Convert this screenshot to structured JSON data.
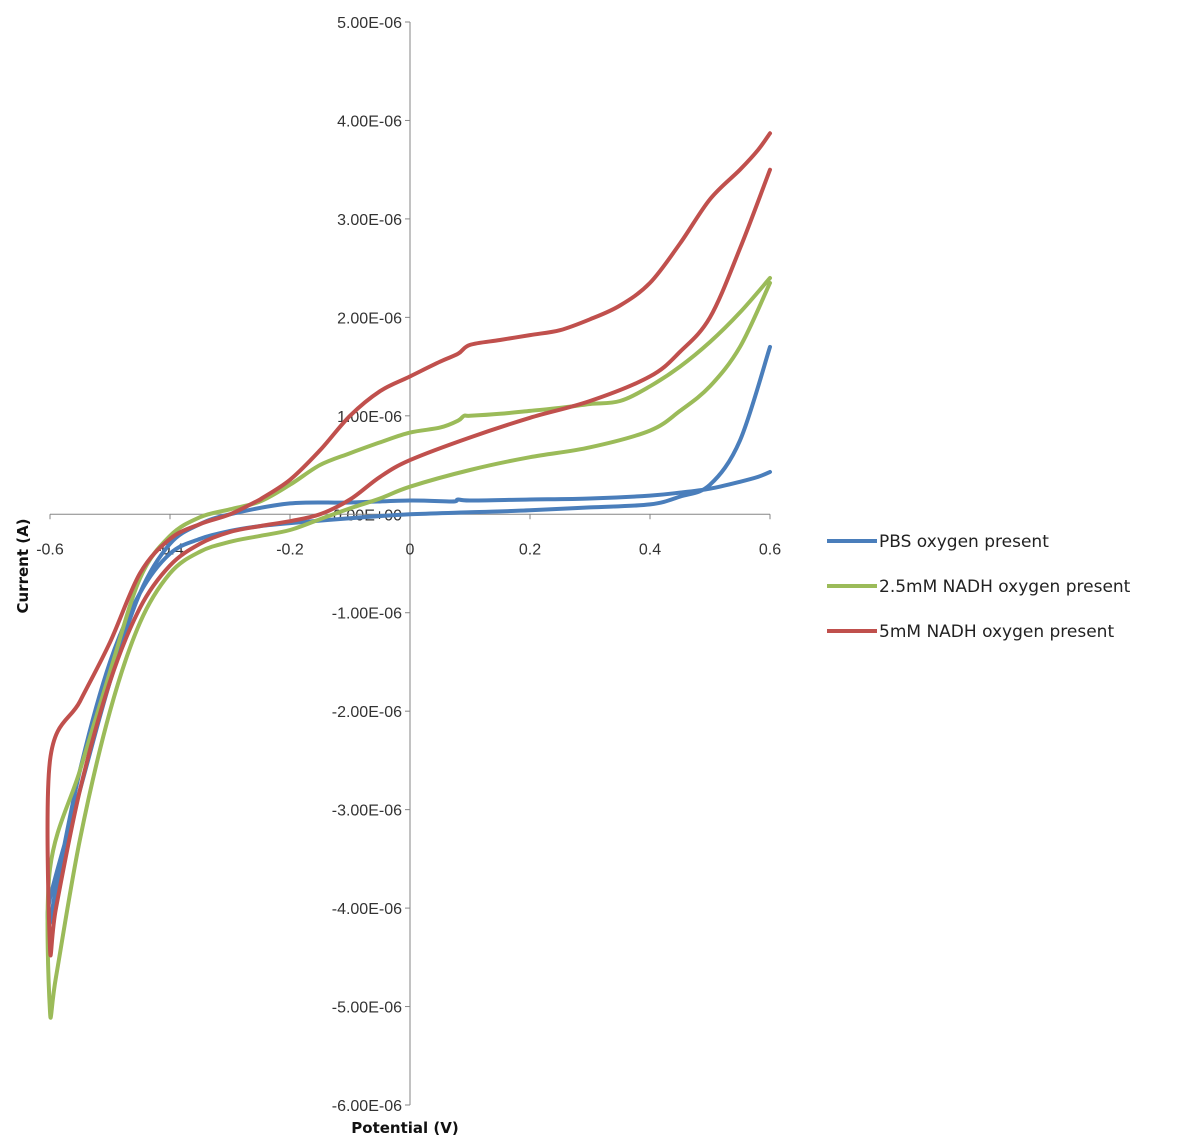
{
  "chart_data": {
    "type": "line",
    "title": "",
    "xlabel": "Potential (V)",
    "ylabel": "Current (A)",
    "xlim": [
      -0.6,
      0.6
    ],
    "ylim": [
      -6e-06,
      5e-06
    ],
    "x_ticks": [
      -0.6,
      -0.4,
      -0.2,
      0,
      0.2,
      0.4,
      0.6
    ],
    "x_tick_labels": [
      "-0.6",
      "-0.4",
      "-0.2",
      "0",
      "0.2",
      "0.4",
      "0.6"
    ],
    "y_ticks": [
      5e-06,
      4e-06,
      3e-06,
      2e-06,
      1e-06,
      0,
      -1e-06,
      -2e-06,
      -3e-06,
      -4e-06,
      -5e-06,
      -6e-06
    ],
    "y_tick_labels": [
      "5.00E-06",
      "4.00E-06",
      "3.00E-06",
      "2.00E-06",
      "1.00E-06",
      "0.00E+00",
      "-1.00E-06",
      "-2.00E-06",
      "-3.00E-06",
      "-4.00E-06",
      "-5.00E-06",
      "-6.00E-06"
    ],
    "grid": false,
    "legend_position": "right",
    "series": [
      {
        "name": "PBS oxygen present",
        "color": "#4A7EBB",
        "x": [
          0.6,
          0.58,
          0.55,
          0.5,
          0.45,
          0.4,
          0.3,
          0.2,
          0.1,
          0.08,
          0.07,
          0.0,
          -0.1,
          -0.2,
          -0.3,
          -0.35,
          -0.4,
          -0.45,
          -0.5,
          -0.55,
          -0.6,
          -0.6,
          -0.59,
          -0.55,
          -0.5,
          -0.45,
          -0.4,
          -0.35,
          -0.3,
          -0.25,
          -0.2,
          -0.1,
          0.0,
          0.1,
          0.2,
          0.3,
          0.4,
          0.45,
          0.5,
          0.55,
          0.6
        ],
        "y": [
          4.3e-07,
          3.8e-07,
          3.3e-07,
          2.6e-07,
          2.2e-07,
          1.9e-07,
          1.6e-07,
          1.5e-07,
          1.4e-07,
          1.5e-07,
          1.3e-07,
          1.4e-07,
          1.2e-07,
          1.1e-07,
          0.0,
          -1e-07,
          -3e-07,
          -8e-07,
          -1.7e-06,
          -2.8e-06,
          -3.9e-06,
          -4.15e-06,
          -3.8e-06,
          -2.6e-06,
          -1.5e-06,
          -8e-07,
          -4e-07,
          -2.5e-07,
          -1.7e-07,
          -1.2e-07,
          -9e-08,
          -4e-08,
          0.0,
          2e-08,
          4e-08,
          7e-08,
          1e-07,
          1.8e-07,
          3e-07,
          7.5e-07,
          1.7e-06
        ]
      },
      {
        "name": "2.5mM NADH oxygen present",
        "color": "#9BBB59",
        "x": [
          0.6,
          0.55,
          0.5,
          0.45,
          0.4,
          0.35,
          0.3,
          0.25,
          0.2,
          0.15,
          0.1,
          0.09,
          0.08,
          0.05,
          0.0,
          -0.05,
          -0.1,
          -0.15,
          -0.2,
          -0.25,
          -0.3,
          -0.35,
          -0.4,
          -0.45,
          -0.5,
          -0.55,
          -0.6,
          -0.6,
          -0.59,
          -0.55,
          -0.5,
          -0.45,
          -0.4,
          -0.35,
          -0.3,
          -0.25,
          -0.2,
          -0.15,
          -0.1,
          -0.05,
          0.0,
          0.1,
          0.2,
          0.3,
          0.4,
          0.45,
          0.5,
          0.55,
          0.6
        ],
        "y": [
          2.4e-06,
          2.05e-06,
          1.75e-06,
          1.5e-06,
          1.3e-06,
          1.15e-06,
          1.12e-06,
          1.08e-06,
          1.05e-06,
          1.02e-06,
          1e-06,
          1e-06,
          9.5e-07,
          8.8e-07,
          8.3e-07,
          7.3e-07,
          6.2e-07,
          5e-07,
          3e-07,
          1.3e-07,
          5e-08,
          -3e-08,
          -2.2e-07,
          -6.5e-07,
          -1.6e-06,
          -2.6e-06,
          -3.6e-06,
          -5.05e-06,
          -4.7e-06,
          -3.3e-06,
          -2e-06,
          -1.1e-06,
          -6e-07,
          -3.8e-07,
          -2.8e-07,
          -2.2e-07,
          -1.6e-07,
          -5e-08,
          6e-08,
          1.6e-07,
          2.8e-07,
          4.5e-07,
          5.8e-07,
          6.8e-07,
          8.5e-07,
          1.05e-06,
          1.3e-06,
          1.7e-06,
          2.35e-06
        ]
      },
      {
        "name": "5mM NADH oxygen present",
        "color": "#C0504D",
        "x": [
          0.6,
          0.58,
          0.55,
          0.5,
          0.45,
          0.4,
          0.35,
          0.3,
          0.25,
          0.2,
          0.15,
          0.1,
          0.08,
          0.05,
          0.0,
          -0.05,
          -0.1,
          -0.15,
          -0.2,
          -0.25,
          -0.25,
          -0.3,
          -0.35,
          -0.4,
          -0.45,
          -0.5,
          -0.55,
          -0.6,
          -0.6,
          -0.59,
          -0.55,
          -0.5,
          -0.45,
          -0.4,
          -0.35,
          -0.3,
          -0.25,
          -0.2,
          -0.15,
          -0.1,
          -0.05,
          0.0,
          0.1,
          0.2,
          0.3,
          0.4,
          0.45,
          0.5,
          0.55,
          0.6
        ],
        "y": [
          3.87e-06,
          3.7e-06,
          3.5e-06,
          3.2e-06,
          2.75e-06,
          2.35e-06,
          2.12e-06,
          1.98e-06,
          1.87e-06,
          1.82e-06,
          1.77e-06,
          1.72e-06,
          1.63e-06,
          1.55e-06,
          1.4e-06,
          1.25e-06,
          1e-06,
          6.5e-07,
          3.5e-07,
          1.5e-07,
          1.5e-07,
          0.0,
          -1e-07,
          -2.5e-07,
          -6e-07,
          -1.3e-06,
          -1.9e-06,
          -2.5e-06,
          -4.4e-06,
          -4e-06,
          -2.8e-06,
          -1.7e-06,
          -9.5e-07,
          -5.2e-07,
          -3e-07,
          -1.8e-07,
          -1.2e-07,
          -7e-08,
          0.0,
          1.5e-07,
          3.8e-07,
          5.5e-07,
          7.8e-07,
          9.8e-07,
          1.15e-06,
          1.4e-06,
          1.65e-06,
          2e-06,
          2.7e-06,
          3.5e-06
        ]
      }
    ]
  }
}
